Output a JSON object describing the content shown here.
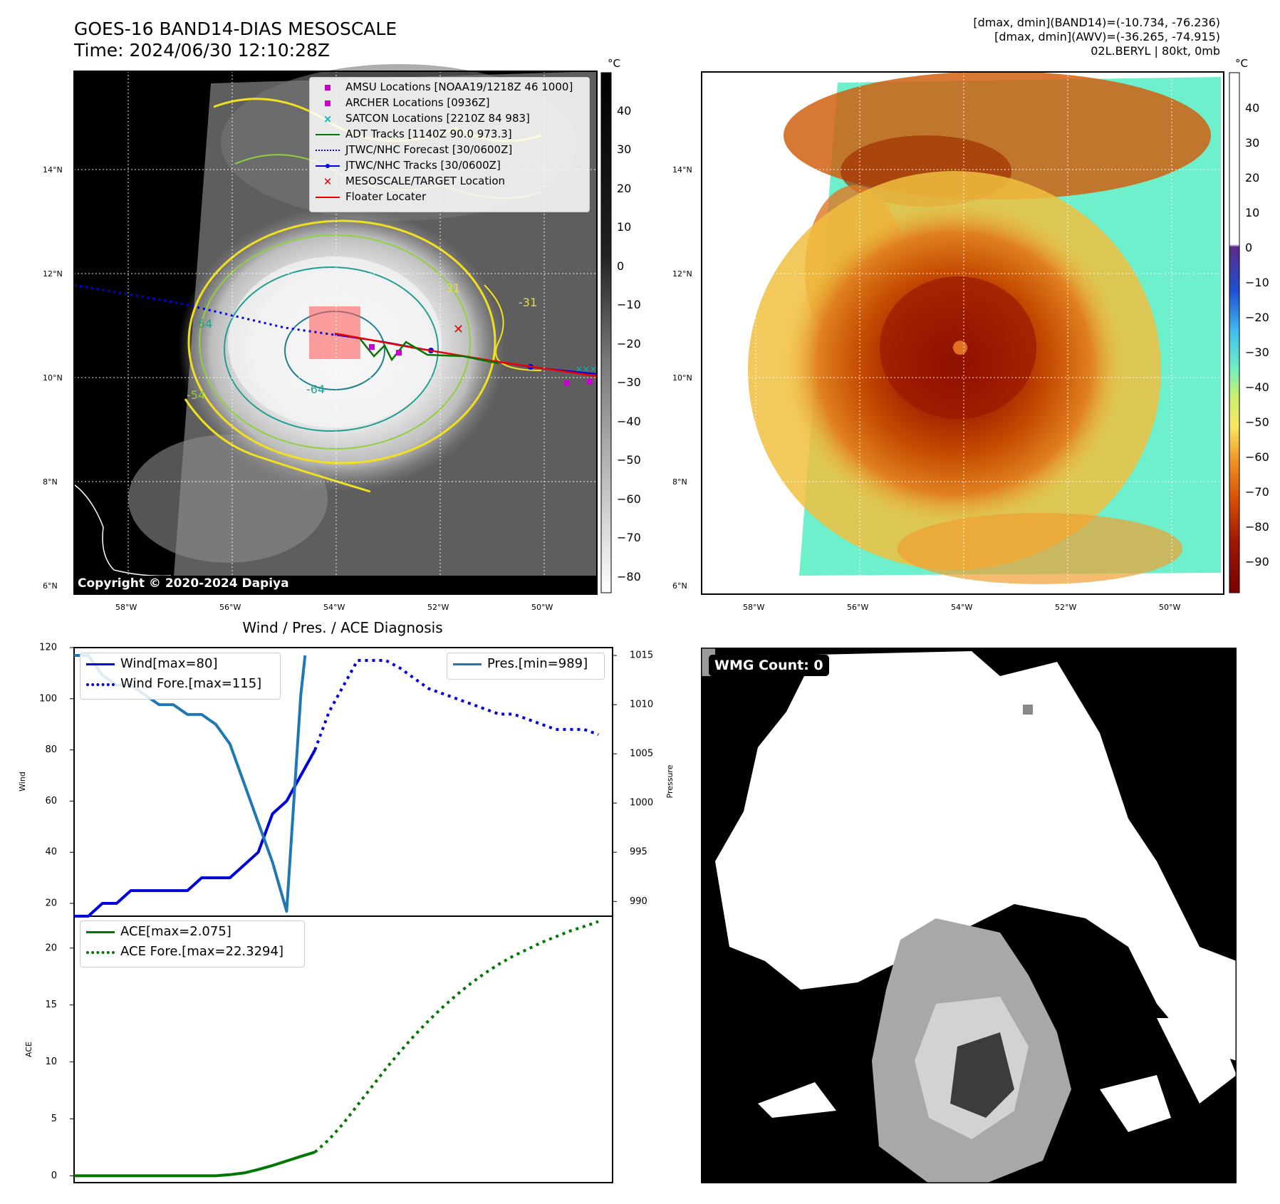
{
  "header": {
    "title_line1": "GOES-16 BAND14-DIAS MESOSCALE",
    "title_line2": "Time: 2024/06/30 12:10:28Z",
    "info_line1": "[dmax, dmin](BAND14)=(-10.734, -76.236)",
    "info_line2": "[dmax, dmin](AWV)=(-36.265, -74.915)",
    "info_line3": "02L.BERYL | 80kt, 0mb"
  },
  "maps": {
    "lat_labels": [
      "14°N",
      "12°N",
      "10°N",
      "8°N",
      "6°N"
    ],
    "lon_labels": [
      "58°W",
      "56°W",
      "54°W",
      "52°W",
      "50°W"
    ],
    "copyright": "Copyright © 2020-2024 Dapiya",
    "colorbar_unit": "°C",
    "left_colorbar_ticks": [
      "40",
      "30",
      "20",
      "10",
      "0",
      "−10",
      "−20",
      "−30",
      "−40",
      "−50",
      "−60",
      "−70",
      "−80"
    ],
    "right_colorbar_ticks": [
      "40",
      "30",
      "20",
      "10",
      "0",
      "−10",
      "−20",
      "−30",
      "−40",
      "−50",
      "−60",
      "−70",
      "−80",
      "−90"
    ],
    "contour_labels": [
      "-54",
      "-64",
      "-31",
      "-31",
      "-54",
      "-54"
    ],
    "legend": [
      {
        "label": "AMSU Locations [NOAA19/1218Z 46 1000]",
        "color": "#cc00cc",
        "marker": "square"
      },
      {
        "label": "ARCHER Locations [0936Z]",
        "color": "#cc00cc",
        "marker": "square"
      },
      {
        "label": "SATCON Locations [2210Z 84 983]",
        "color": "#00bbbb",
        "marker": "x"
      },
      {
        "label": "ADT Tracks [1140Z 90.0 973.3]",
        "color": "#007700",
        "marker": "line"
      },
      {
        "label": "JTWC/NHC Forecast [30/0600Z]",
        "color": "#0000ee",
        "marker": "dotted"
      },
      {
        "label": "JTWC/NHC Tracks [30/0600Z]",
        "color": "#0000ee",
        "marker": "line-dot"
      },
      {
        "label": "MESOSCALE/TARGET Location",
        "color": "#ee0000",
        "marker": "x"
      },
      {
        "label": "Floater Locater",
        "color": "#ee0000",
        "marker": "line"
      }
    ]
  },
  "wind_chart": {
    "title": "Wind / Pres. / ACE Diagnosis",
    "ylabel_left": "Wind",
    "ylabel_right": "Pressure",
    "legend_left": [
      {
        "label": "Wind[max=80]",
        "style": "solid",
        "color": "#0000dd"
      },
      {
        "label": "Wind Fore.[max=115]",
        "style": "dotted",
        "color": "#0000dd"
      }
    ],
    "legend_right": [
      {
        "label": "Pres.[min=989]",
        "style": "solid",
        "color": "#1f77b4"
      }
    ],
    "ace_ylabel": "ACE",
    "ace_legend": [
      {
        "label": "ACE[max=2.075]",
        "style": "solid",
        "color": "#007700"
      },
      {
        "label": "ACE Fore.[max=22.3294]",
        "style": "dotted",
        "color": "#007700"
      }
    ]
  },
  "wmg": {
    "label": "WMG Count: 0"
  },
  "chart_data": [
    {
      "type": "line",
      "title": "Wind / Pres. / ACE Diagnosis",
      "ylabel": "Wind",
      "y2label": "Pressure",
      "ylim": [
        15,
        120
      ],
      "y2lim": [
        988.5,
        1015.8
      ],
      "xlim": [
        0,
        38
      ],
      "yticks": [
        20,
        40,
        60,
        80,
        100,
        120
      ],
      "y2ticks": [
        990,
        995,
        1000,
        1005,
        1010,
        1015
      ],
      "series": [
        {
          "name": "Wind[max=80]",
          "axis": "left",
          "style": "solid",
          "color": "#0000dd",
          "x": [
            0,
            1,
            2,
            3,
            4,
            5,
            6,
            7,
            8,
            9,
            10,
            11,
            12,
            13,
            14,
            15,
            16,
            17
          ],
          "y": [
            15,
            15,
            20,
            20,
            25,
            25,
            25,
            25,
            25,
            30,
            30,
            30,
            35,
            40,
            55,
            60,
            70,
            80
          ]
        },
        {
          "name": "Wind Fore.[max=115]",
          "axis": "left",
          "style": "dotted",
          "color": "#0000dd",
          "x": [
            17,
            18,
            19,
            20,
            21,
            22,
            23,
            24,
            25,
            26,
            27,
            28,
            29,
            30,
            31,
            32,
            33,
            34,
            35,
            36,
            37
          ],
          "y": [
            80,
            95,
            105,
            115,
            115,
            115,
            112,
            108,
            104,
            102,
            100,
            98,
            96,
            94,
            94,
            92,
            90,
            88,
            88,
            88,
            86
          ]
        },
        {
          "name": "Pres.[min=989]",
          "axis": "right",
          "style": "solid",
          "color": "#1f77b4",
          "x": [
            0,
            1,
            2,
            3,
            4,
            5,
            6,
            7,
            8,
            9,
            10,
            11,
            12,
            13,
            14,
            15,
            16,
            16.3
          ],
          "y": [
            1015,
            1015,
            1013,
            1012,
            1012,
            1011,
            1010,
            1010,
            1009,
            1009,
            1008,
            1006,
            1002,
            998,
            994,
            989,
            1011,
            1015
          ]
        }
      ]
    },
    {
      "type": "line",
      "ylabel": "ACE",
      "ylim": [
        -0.6,
        22.8
      ],
      "xlim": [
        0,
        38
      ],
      "yticks": [
        0,
        5,
        10,
        15,
        20
      ],
      "series": [
        {
          "name": "ACE[max=2.075]",
          "style": "solid",
          "color": "#007700",
          "x": [
            0,
            2,
            4,
            6,
            8,
            10,
            11,
            12,
            13,
            14,
            15,
            16,
            17
          ],
          "y": [
            0,
            0,
            0,
            0,
            0,
            0,
            0.1,
            0.25,
            0.55,
            0.9,
            1.3,
            1.7,
            2.075
          ]
        },
        {
          "name": "ACE Fore.[max=22.3294]",
          "style": "dotted",
          "color": "#007700",
          "x": [
            17,
            18,
            19,
            20,
            21,
            22,
            23,
            24,
            25,
            26,
            27,
            28,
            29,
            30,
            31,
            32,
            33,
            34,
            35,
            36,
            37
          ],
          "y": [
            2.075,
            3.2,
            4.6,
            6.2,
            7.8,
            9.4,
            10.9,
            12.3,
            13.6,
            14.8,
            15.9,
            16.9,
            17.8,
            18.6,
            19.3,
            19.9,
            20.5,
            21.0,
            21.5,
            21.9,
            22.33
          ]
        }
      ]
    }
  ]
}
